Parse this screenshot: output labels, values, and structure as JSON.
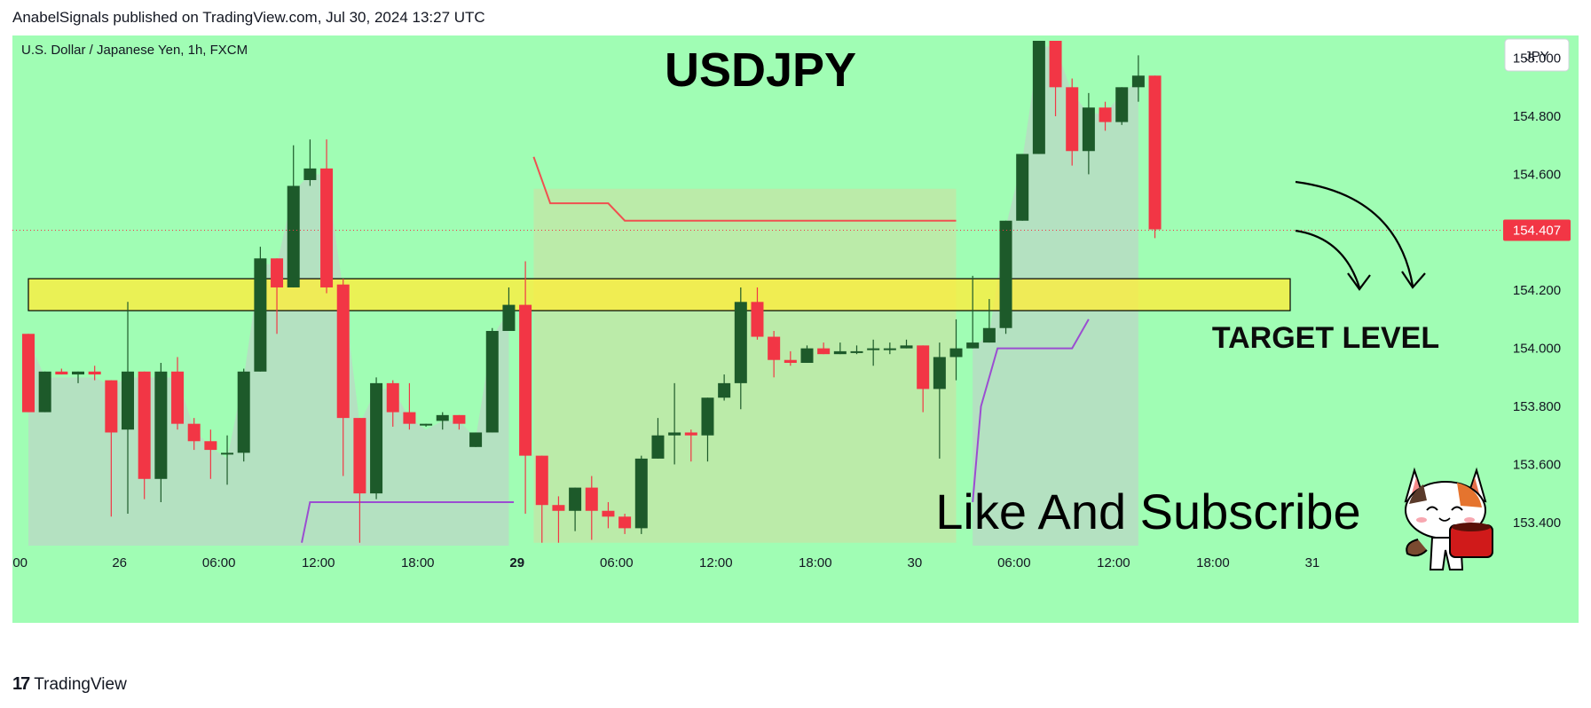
{
  "header": {
    "publisher_line": "AnabelSignals published on TradingView.com, Jul 30, 2024 13:27 UTC"
  },
  "footer": {
    "brand": "TradingView",
    "logo_text": "17"
  },
  "chart_data": {
    "type": "candlestick",
    "title": "USDJPY",
    "symbol_label": "U.S. Dollar / Japanese Yen, 1h, FXCM",
    "currency_label": "JPY",
    "current_price": "154.407",
    "background_color": "#a0fdb4",
    "up_color": "#1d5a2a",
    "down_color": "#f23645",
    "ylim": [
      153.32,
      155.06
    ],
    "y_ticks": [
      "155.000",
      "154.800",
      "154.600",
      "154.400",
      "154.200",
      "154.000",
      "153.800",
      "153.600",
      "153.400"
    ],
    "y_tick_values": [
      155.0,
      154.8,
      154.6,
      154.4,
      154.2,
      154.0,
      153.8,
      153.6,
      153.4
    ],
    "x_ticks": [
      {
        "label": "00",
        "index": -0.5
      },
      {
        "label": "26",
        "index": 5.5
      },
      {
        "label": "06:00",
        "index": 11.5
      },
      {
        "label": "12:00",
        "index": 17.5
      },
      {
        "label": "18:00",
        "index": 23.5
      },
      {
        "label": "29",
        "index": 29.5,
        "bold": true
      },
      {
        "label": "06:00",
        "index": 35.5
      },
      {
        "label": "12:00",
        "index": 41.5
      },
      {
        "label": "18:00",
        "index": 47.5
      },
      {
        "label": "30",
        "index": 53.5
      },
      {
        "label": "06:00",
        "index": 59.5
      },
      {
        "label": "12:00",
        "index": 65.5
      },
      {
        "label": "18:00",
        "index": 71.5
      },
      {
        "label": "31",
        "index": 77.5
      }
    ],
    "candles": [
      {
        "o": 154.05,
        "h": 154.05,
        "l": 153.78,
        "c": 153.78
      },
      {
        "o": 153.78,
        "h": 153.92,
        "l": 153.78,
        "c": 153.92
      },
      {
        "o": 153.92,
        "h": 153.93,
        "l": 153.91,
        "c": 153.91
      },
      {
        "o": 153.91,
        "h": 153.92,
        "l": 153.88,
        "c": 153.92
      },
      {
        "o": 153.92,
        "h": 153.94,
        "l": 153.89,
        "c": 153.91
      },
      {
        "o": 153.89,
        "h": 153.89,
        "l": 153.42,
        "c": 153.71
      },
      {
        "o": 153.72,
        "h": 154.16,
        "l": 153.43,
        "c": 153.92
      },
      {
        "o": 153.92,
        "h": 153.92,
        "l": 153.48,
        "c": 153.55
      },
      {
        "o": 153.55,
        "h": 153.95,
        "l": 153.47,
        "c": 153.92
      },
      {
        "o": 153.92,
        "h": 153.97,
        "l": 153.72,
        "c": 153.74
      },
      {
        "o": 153.74,
        "h": 153.76,
        "l": 153.65,
        "c": 153.68
      },
      {
        "o": 153.68,
        "h": 153.72,
        "l": 153.55,
        "c": 153.65
      },
      {
        "o": 153.64,
        "h": 153.7,
        "l": 153.53,
        "c": 153.64
      },
      {
        "o": 153.64,
        "h": 153.93,
        "l": 153.61,
        "c": 153.92
      },
      {
        "o": 153.92,
        "h": 154.35,
        "l": 153.92,
        "c": 154.31
      },
      {
        "o": 154.31,
        "h": 154.31,
        "l": 154.05,
        "c": 154.21
      },
      {
        "o": 154.21,
        "h": 154.7,
        "l": 154.21,
        "c": 154.56
      },
      {
        "o": 154.58,
        "h": 154.72,
        "l": 154.56,
        "c": 154.62
      },
      {
        "o": 154.62,
        "h": 154.72,
        "l": 154.19,
        "c": 154.21
      },
      {
        "o": 154.22,
        "h": 154.24,
        "l": 153.56,
        "c": 153.76
      },
      {
        "o": 153.76,
        "h": 153.76,
        "l": 153.33,
        "c": 153.5
      },
      {
        "o": 153.5,
        "h": 153.9,
        "l": 153.48,
        "c": 153.88
      },
      {
        "o": 153.88,
        "h": 153.89,
        "l": 153.73,
        "c": 153.78
      },
      {
        "o": 153.78,
        "h": 153.88,
        "l": 153.72,
        "c": 153.74
      },
      {
        "o": 153.74,
        "h": 153.74,
        "l": 153.73,
        "c": 153.74
      },
      {
        "o": 153.75,
        "h": 153.78,
        "l": 153.72,
        "c": 153.77
      },
      {
        "o": 153.77,
        "h": 153.77,
        "l": 153.72,
        "c": 153.74
      },
      {
        "o": 153.66,
        "h": 153.71,
        "l": 153.66,
        "c": 153.71
      },
      {
        "o": 153.71,
        "h": 154.07,
        "l": 153.71,
        "c": 154.06
      },
      {
        "o": 154.06,
        "h": 154.21,
        "l": 154.06,
        "c": 154.15
      },
      {
        "o": 154.15,
        "h": 154.3,
        "l": 153.43,
        "c": 153.63
      },
      {
        "o": 153.63,
        "h": 153.63,
        "l": 153.33,
        "c": 153.46
      },
      {
        "o": 153.46,
        "h": 153.49,
        "l": 153.33,
        "c": 153.44
      },
      {
        "o": 153.44,
        "h": 153.52,
        "l": 153.37,
        "c": 153.52
      },
      {
        "o": 153.52,
        "h": 153.56,
        "l": 153.34,
        "c": 153.44
      },
      {
        "o": 153.44,
        "h": 153.47,
        "l": 153.38,
        "c": 153.42
      },
      {
        "o": 153.42,
        "h": 153.43,
        "l": 153.36,
        "c": 153.38
      },
      {
        "o": 153.38,
        "h": 153.63,
        "l": 153.36,
        "c": 153.62
      },
      {
        "o": 153.62,
        "h": 153.76,
        "l": 153.62,
        "c": 153.7
      },
      {
        "o": 153.7,
        "h": 153.88,
        "l": 153.6,
        "c": 153.71
      },
      {
        "o": 153.71,
        "h": 153.72,
        "l": 153.61,
        "c": 153.7
      },
      {
        "o": 153.7,
        "h": 153.83,
        "l": 153.61,
        "c": 153.83
      },
      {
        "o": 153.83,
        "h": 153.91,
        "l": 153.82,
        "c": 153.88
      },
      {
        "o": 153.88,
        "h": 154.21,
        "l": 153.79,
        "c": 154.16
      },
      {
        "o": 154.16,
        "h": 154.21,
        "l": 154.03,
        "c": 154.04
      },
      {
        "o": 154.04,
        "h": 154.06,
        "l": 153.9,
        "c": 153.96
      },
      {
        "o": 153.96,
        "h": 153.99,
        "l": 153.94,
        "c": 153.95
      },
      {
        "o": 153.95,
        "h": 154.01,
        "l": 153.95,
        "c": 154.0
      },
      {
        "o": 154.0,
        "h": 154.02,
        "l": 153.98,
        "c": 153.98
      },
      {
        "o": 153.98,
        "h": 154.02,
        "l": 153.98,
        "c": 153.99
      },
      {
        "o": 153.99,
        "h": 154.01,
        "l": 153.98,
        "c": 153.99
      },
      {
        "o": 154.0,
        "h": 154.03,
        "l": 153.94,
        "c": 154.0
      },
      {
        "o": 154.0,
        "h": 154.02,
        "l": 153.98,
        "c": 154.0
      },
      {
        "o": 154.0,
        "h": 154.03,
        "l": 154.0,
        "c": 154.01
      },
      {
        "o": 154.01,
        "h": 154.01,
        "l": 153.78,
        "c": 153.86
      },
      {
        "o": 153.86,
        "h": 154.02,
        "l": 153.62,
        "c": 153.97
      },
      {
        "o": 153.97,
        "h": 154.1,
        "l": 153.89,
        "c": 154.0
      },
      {
        "o": 154.0,
        "h": 154.25,
        "l": 154.0,
        "c": 154.02
      },
      {
        "o": 154.02,
        "h": 154.17,
        "l": 154.02,
        "c": 154.07
      },
      {
        "o": 154.07,
        "h": 154.44,
        "l": 154.05,
        "c": 154.44
      },
      {
        "o": 154.44,
        "h": 154.67,
        "l": 154.44,
        "c": 154.67
      },
      {
        "o": 154.67,
        "h": 155.06,
        "l": 154.67,
        "c": 155.06
      },
      {
        "o": 155.06,
        "h": 155.06,
        "l": 154.8,
        "c": 154.9
      },
      {
        "o": 154.9,
        "h": 154.93,
        "l": 154.63,
        "c": 154.68
      },
      {
        "o": 154.68,
        "h": 154.88,
        "l": 154.6,
        "c": 154.83
      },
      {
        "o": 154.83,
        "h": 154.85,
        "l": 154.75,
        "c": 154.78
      },
      {
        "o": 154.78,
        "h": 154.9,
        "l": 154.77,
        "c": 154.9
      },
      {
        "o": 154.9,
        "h": 155.01,
        "l": 154.85,
        "c": 154.94
      },
      {
        "o": 154.94,
        "h": 154.94,
        "l": 154.38,
        "c": 154.41
      }
    ],
    "volume_profile_lines": {
      "red_line": [
        [
          30.5,
          154.66
        ],
        [
          31.5,
          154.5
        ],
        [
          35.0,
          154.5
        ],
        [
          36.0,
          154.44
        ],
        [
          56.0,
          154.44
        ]
      ],
      "purple_line_1": [
        [
          16.5,
          153.33
        ],
        [
          17.0,
          153.47
        ],
        [
          29.3,
          153.47
        ]
      ],
      "purple_line_2": [
        [
          57.0,
          153.47
        ],
        [
          57.5,
          153.8
        ],
        [
          58.5,
          154.0
        ],
        [
          63.0,
          154.0
        ],
        [
          64.0,
          154.1
        ]
      ]
    },
    "annotations": {
      "target_level_label": "TARGET LEVEL",
      "target_zone": [
        154.13,
        154.24
      ],
      "cta": "Like And Subscribe"
    }
  }
}
